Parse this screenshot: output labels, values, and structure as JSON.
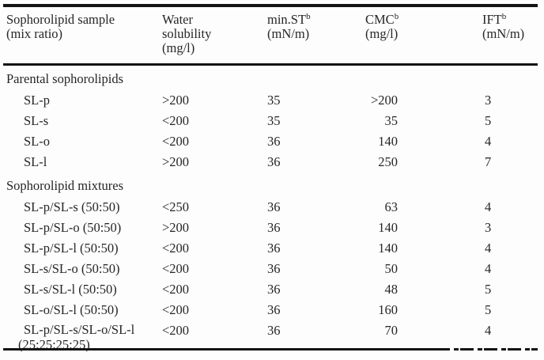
{
  "table": {
    "columns": [
      {
        "label": "Sophorolipid sample",
        "sup": "",
        "unit": "(mix ratio)"
      },
      {
        "label": "Water\nsolubility",
        "sup": "",
        "unit": "(mg/l)"
      },
      {
        "label": "min.ST",
        "sup": "b",
        "unit": "(mN/m)"
      },
      {
        "label": "CMC",
        "sup": "b",
        "unit": "(mg/l)"
      },
      {
        "label": "IFT",
        "sup": "b",
        "unit": "(mN/m)"
      }
    ],
    "sections": [
      {
        "title": "Parental sophorolipids",
        "rows": [
          {
            "sample": "SL-p",
            "water_solubility": ">200",
            "min_st": "35",
            "cmc": ">200",
            "ift": "3"
          },
          {
            "sample": "SL-s",
            "water_solubility": "<200",
            "min_st": "35",
            "cmc": "35",
            "ift": "5"
          },
          {
            "sample": "SL-o",
            "water_solubility": "<200",
            "min_st": "36",
            "cmc": "140",
            "ift": "4"
          },
          {
            "sample": "SL-l",
            "water_solubility": ">200",
            "min_st": "36",
            "cmc": "250",
            "ift": "7"
          }
        ]
      },
      {
        "title": "Sophorolipid mixtures",
        "rows": [
          {
            "sample": "SL-p/SL-s (50:50)",
            "water_solubility": "<250",
            "min_st": "36",
            "cmc": "63",
            "ift": "4"
          },
          {
            "sample": "SL-p/SL-o (50:50)",
            "water_solubility": ">200",
            "min_st": "36",
            "cmc": "140",
            "ift": "3"
          },
          {
            "sample": "SL-p/SL-l (50:50)",
            "water_solubility": "<200",
            "min_st": "36",
            "cmc": "140",
            "ift": "4"
          },
          {
            "sample": "SL-s/SL-o (50:50)",
            "water_solubility": "<200",
            "min_st": "36",
            "cmc": "50",
            "ift": "4"
          },
          {
            "sample": "SL-s/SL-l (50:50)",
            "water_solubility": "<200",
            "min_st": "36",
            "cmc": "48",
            "ift": "5"
          },
          {
            "sample": "SL-o/SL-l (50:50)",
            "water_solubility": "<200",
            "min_st": "36",
            "cmc": "160",
            "ift": "5"
          },
          {
            "sample": "SL-p/SL-s/SL-o/SL-l\n(25:25:25:25)",
            "water_solubility": "<200",
            "min_st": "36",
            "cmc": "70",
            "ift": "4"
          }
        ]
      }
    ]
  }
}
